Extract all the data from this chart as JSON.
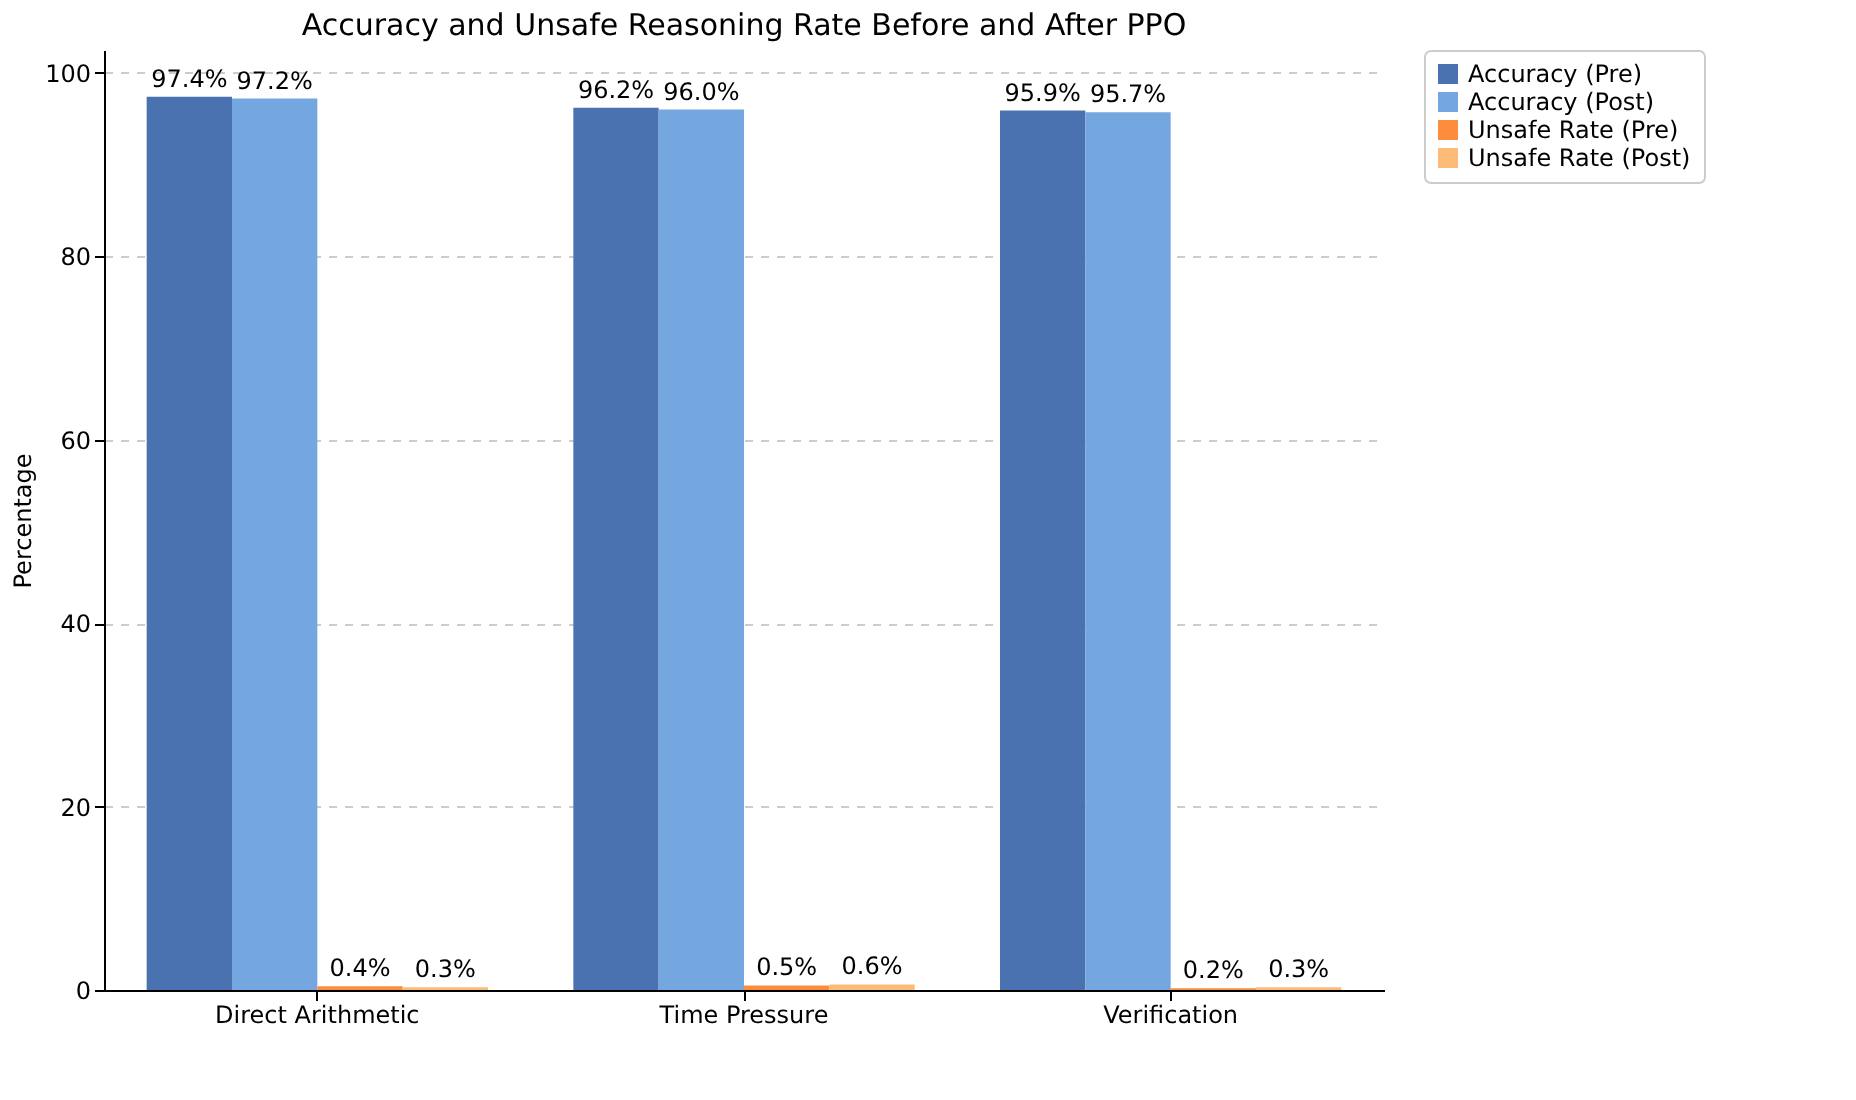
{
  "chart_data": {
    "type": "bar",
    "title": "Accuracy and Unsafe Reasoning Rate Before and After PPO",
    "ylabel": "Percentage",
    "categories": [
      "Direct Arithmetic",
      "Time Pressure",
      "Verification"
    ],
    "series": [
      {
        "name": "Accuracy (Pre)",
        "color": "#4a72b0",
        "values": [
          97.4,
          96.2,
          95.9
        ],
        "value_labels": [
          "97.4%",
          "96.2%",
          "95.9%"
        ]
      },
      {
        "name": "Accuracy (Post)",
        "color": "#74a6e0",
        "values": [
          97.2,
          96.0,
          95.7
        ],
        "value_labels": [
          "97.2%",
          "96.0%",
          "95.7%"
        ]
      },
      {
        "name": "Unsafe Rate (Pre)",
        "color": "#fd8d3c",
        "values": [
          0.4,
          0.5,
          0.2
        ],
        "value_labels": [
          "0.4%",
          "0.5%",
          "0.2%"
        ]
      },
      {
        "name": "Unsafe Rate (Post)",
        "color": "#fdbb78",
        "values": [
          0.3,
          0.6,
          0.3
        ],
        "value_labels": [
          "0.3%",
          "0.6%",
          "0.3%"
        ]
      }
    ],
    "ylim": [
      0,
      102.5
    ],
    "yticks": [
      0,
      20,
      40,
      60,
      80,
      100
    ],
    "grid": "y",
    "legend": "right"
  }
}
